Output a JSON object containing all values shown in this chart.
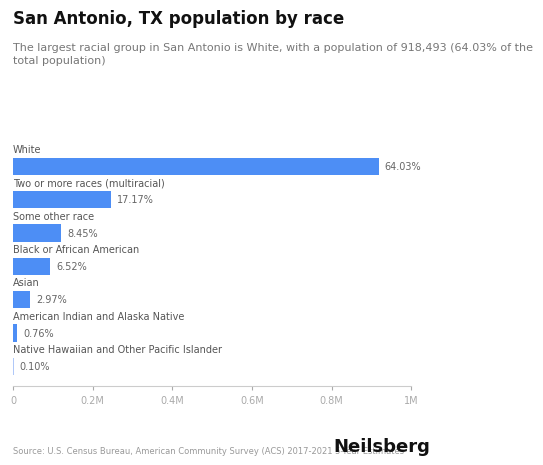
{
  "title": "San Antonio, TX population by race",
  "subtitle": "The largest racial group in San Antonio is White, with a population of 918,493 (64.03% of the\ntotal population)",
  "categories": [
    "White",
    "Two or more races (multiracial)",
    "Some other race",
    "Black or African American",
    "Asian",
    "American Indian and Alaska Native",
    "Native Hawaiian and Other Pacific Islander"
  ],
  "values": [
    918493,
    246358,
    121246,
    93573,
    42620,
    10908,
    1435
  ],
  "percentages": [
    "64.03%",
    "17.17%",
    "8.45%",
    "6.52%",
    "2.97%",
    "0.76%",
    "0.10%"
  ],
  "bar_color": "#4d8ef5",
  "last_bar_color": "#b0c8f8",
  "xlim": [
    0,
    1000000
  ],
  "xticks": [
    0,
    200000,
    400000,
    600000,
    800000,
    1000000
  ],
  "xtick_labels": [
    "0",
    "0.2M",
    "0.4M",
    "0.6M",
    "0.8M",
    "1M"
  ],
  "source": "Source: U.S. Census Bureau, American Community Survey (ACS) 2017-2021 5-Year Estimates",
  "branding": "Neilsberg",
  "background_color": "#ffffff",
  "bar_height": 0.52,
  "category_fontsize": 7.0,
  "pct_fontsize": 7.0,
  "title_fontsize": 12,
  "subtitle_fontsize": 8.0,
  "source_fontsize": 6.0,
  "branding_fontsize": 13,
  "tick_fontsize": 7.0
}
